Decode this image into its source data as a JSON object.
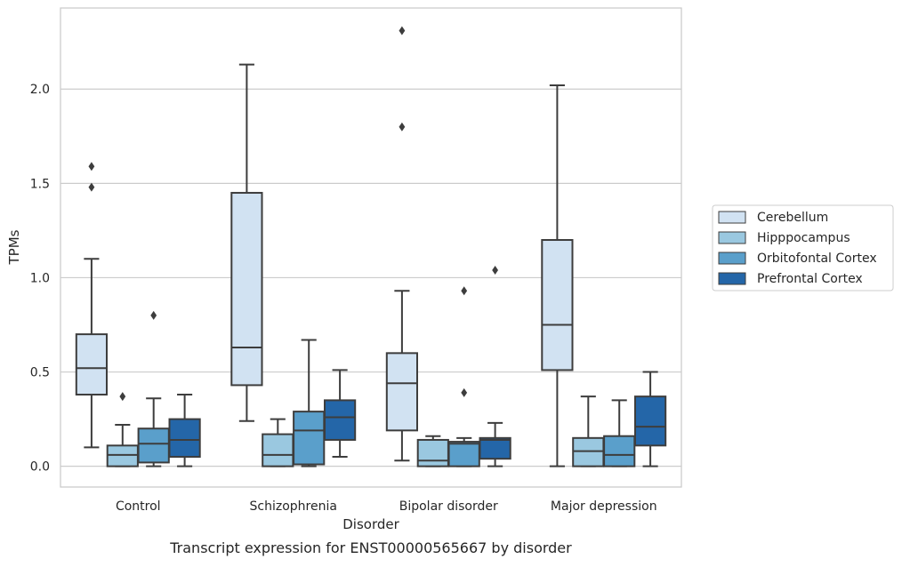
{
  "caption": "Transcript expression for ENST00000565667 by disorder",
  "chart_data": {
    "type": "box",
    "title": "",
    "xlabel": "Disorder",
    "ylabel": "TPMs",
    "ylim": [
      -0.11,
      2.43
    ],
    "yticks": [
      0.0,
      0.5,
      1.0,
      1.5,
      2.0
    ],
    "ytick_labels": [
      "0.0",
      "0.5",
      "1.0",
      "1.5",
      "2.0"
    ],
    "grid": "horizontal",
    "legend_position": "right",
    "categories": [
      "Control",
      "Schizophrenia",
      "Bipolar disorder",
      "Major depression"
    ],
    "series": [
      {
        "name": "Cerebellum",
        "color": "#d1e2f2",
        "boxes": [
          {
            "whisker_low": 0.1,
            "q1": 0.38,
            "median": 0.52,
            "q3": 0.7,
            "whisker_high": 1.1,
            "outliers": [
              1.48,
              1.59
            ]
          },
          {
            "whisker_low": 0.24,
            "q1": 0.43,
            "median": 0.63,
            "q3": 1.45,
            "whisker_high": 2.13,
            "outliers": []
          },
          {
            "whisker_low": 0.03,
            "q1": 0.19,
            "median": 0.44,
            "q3": 0.6,
            "whisker_high": 0.93,
            "outliers": [
              1.8,
              2.31
            ]
          },
          {
            "whisker_low": 0.0,
            "q1": 0.51,
            "median": 0.75,
            "q3": 1.2,
            "whisker_high": 2.02,
            "outliers": []
          }
        ]
      },
      {
        "name": "Hipppocampus",
        "color": "#9ac8e0",
        "boxes": [
          {
            "whisker_low": 0.0,
            "q1": 0.0,
            "median": 0.06,
            "q3": 0.11,
            "whisker_high": 0.22,
            "outliers": [
              0.37
            ]
          },
          {
            "whisker_low": 0.0,
            "q1": 0.0,
            "median": 0.06,
            "q3": 0.17,
            "whisker_high": 0.25,
            "outliers": []
          },
          {
            "whisker_low": 0.0,
            "q1": 0.0,
            "median": 0.03,
            "q3": 0.14,
            "whisker_high": 0.16,
            "outliers": []
          },
          {
            "whisker_low": 0.0,
            "q1": 0.0,
            "median": 0.08,
            "q3": 0.15,
            "whisker_high": 0.37,
            "outliers": []
          }
        ]
      },
      {
        "name": "Orbitofontal Cortex",
        "color": "#5a9fcb",
        "boxes": [
          {
            "whisker_low": 0.0,
            "q1": 0.02,
            "median": 0.12,
            "q3": 0.2,
            "whisker_high": 0.36,
            "outliers": [
              0.8
            ]
          },
          {
            "whisker_low": 0.0,
            "q1": 0.01,
            "median": 0.19,
            "q3": 0.29,
            "whisker_high": 0.67,
            "outliers": []
          },
          {
            "whisker_low": 0.0,
            "q1": 0.0,
            "median": 0.12,
            "q3": 0.13,
            "whisker_high": 0.15,
            "outliers": [
              0.39,
              0.93
            ]
          },
          {
            "whisker_low": 0.0,
            "q1": 0.0,
            "median": 0.06,
            "q3": 0.16,
            "whisker_high": 0.35,
            "outliers": []
          }
        ]
      },
      {
        "name": "Prefrontal Cortex",
        "color": "#2466a8",
        "boxes": [
          {
            "whisker_low": 0.0,
            "q1": 0.05,
            "median": 0.14,
            "q3": 0.25,
            "whisker_high": 0.38,
            "outliers": []
          },
          {
            "whisker_low": 0.05,
            "q1": 0.14,
            "median": 0.26,
            "q3": 0.35,
            "whisker_high": 0.51,
            "outliers": []
          },
          {
            "whisker_low": 0.0,
            "q1": 0.04,
            "median": 0.14,
            "q3": 0.15,
            "whisker_high": 0.23,
            "outliers": [
              1.04
            ]
          },
          {
            "whisker_low": 0.0,
            "q1": 0.11,
            "median": 0.21,
            "q3": 0.37,
            "whisker_high": 0.5,
            "outliers": []
          }
        ]
      }
    ]
  }
}
